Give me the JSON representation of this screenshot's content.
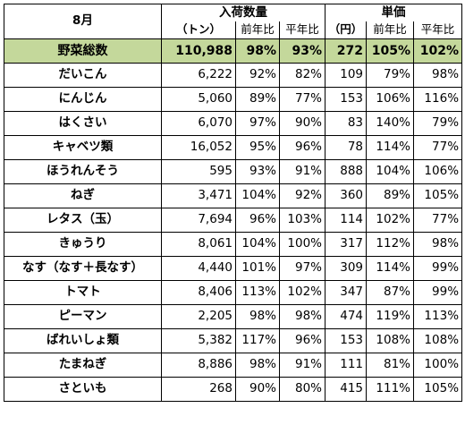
{
  "header": {
    "month_label": "8月",
    "volume_group": "入荷数量",
    "volume_unit": "（トン）",
    "price_group": "単価",
    "price_unit": "（円）",
    "col_prev_year": "前年比",
    "col_normal_year": "平年比"
  },
  "summary": {
    "name": "野菜総数",
    "volume": "110,988",
    "vol_prev": "98%",
    "vol_normal": "93%",
    "price": "272",
    "price_prev": "105%",
    "price_normal": "102%"
  },
  "rows": [
    {
      "name": "だいこん",
      "volume": "6,222",
      "vol_prev": "92%",
      "vol_normal": "82%",
      "price": "109",
      "price_prev": "79%",
      "price_normal": "98%"
    },
    {
      "name": "にんじん",
      "volume": "5,060",
      "vol_prev": "89%",
      "vol_normal": "77%",
      "price": "153",
      "price_prev": "106%",
      "price_normal": "116%"
    },
    {
      "name": "はくさい",
      "volume": "6,070",
      "vol_prev": "97%",
      "vol_normal": "90%",
      "price": "83",
      "price_prev": "140%",
      "price_normal": "79%"
    },
    {
      "name": "キャベツ類",
      "volume": "16,052",
      "vol_prev": "95%",
      "vol_normal": "96%",
      "price": "78",
      "price_prev": "114%",
      "price_normal": "77%"
    },
    {
      "name": "ほうれんそう",
      "volume": "595",
      "vol_prev": "93%",
      "vol_normal": "91%",
      "price": "888",
      "price_prev": "104%",
      "price_normal": "106%"
    },
    {
      "name": "ねぎ",
      "volume": "3,471",
      "vol_prev": "104%",
      "vol_normal": "92%",
      "price": "360",
      "price_prev": "89%",
      "price_normal": "105%"
    },
    {
      "name": "レタス（玉）",
      "volume": "7,694",
      "vol_prev": "96%",
      "vol_normal": "103%",
      "price": "114",
      "price_prev": "102%",
      "price_normal": "77%"
    },
    {
      "name": "きゅうり",
      "volume": "8,061",
      "vol_prev": "104%",
      "vol_normal": "100%",
      "price": "317",
      "price_prev": "112%",
      "price_normal": "98%"
    },
    {
      "name": "なす（なす＋長なす）",
      "volume": "4,440",
      "vol_prev": "101%",
      "vol_normal": "97%",
      "price": "309",
      "price_prev": "114%",
      "price_normal": "99%"
    },
    {
      "name": "トマト",
      "volume": "8,406",
      "vol_prev": "113%",
      "vol_normal": "102%",
      "price": "347",
      "price_prev": "87%",
      "price_normal": "99%"
    },
    {
      "name": "ピーマン",
      "volume": "2,205",
      "vol_prev": "98%",
      "vol_normal": "98%",
      "price": "474",
      "price_prev": "119%",
      "price_normal": "113%"
    },
    {
      "name": "ばれいしょ類",
      "volume": "5,382",
      "vol_prev": "117%",
      "vol_normal": "96%",
      "price": "153",
      "price_prev": "108%",
      "price_normal": "108%"
    },
    {
      "name": "たまねぎ",
      "volume": "8,886",
      "vol_prev": "98%",
      "vol_normal": "91%",
      "price": "111",
      "price_prev": "81%",
      "price_normal": "100%"
    },
    {
      "name": "さといも",
      "volume": "268",
      "vol_prev": "90%",
      "vol_normal": "80%",
      "price": "415",
      "price_prev": "111%",
      "price_normal": "105%"
    }
  ]
}
